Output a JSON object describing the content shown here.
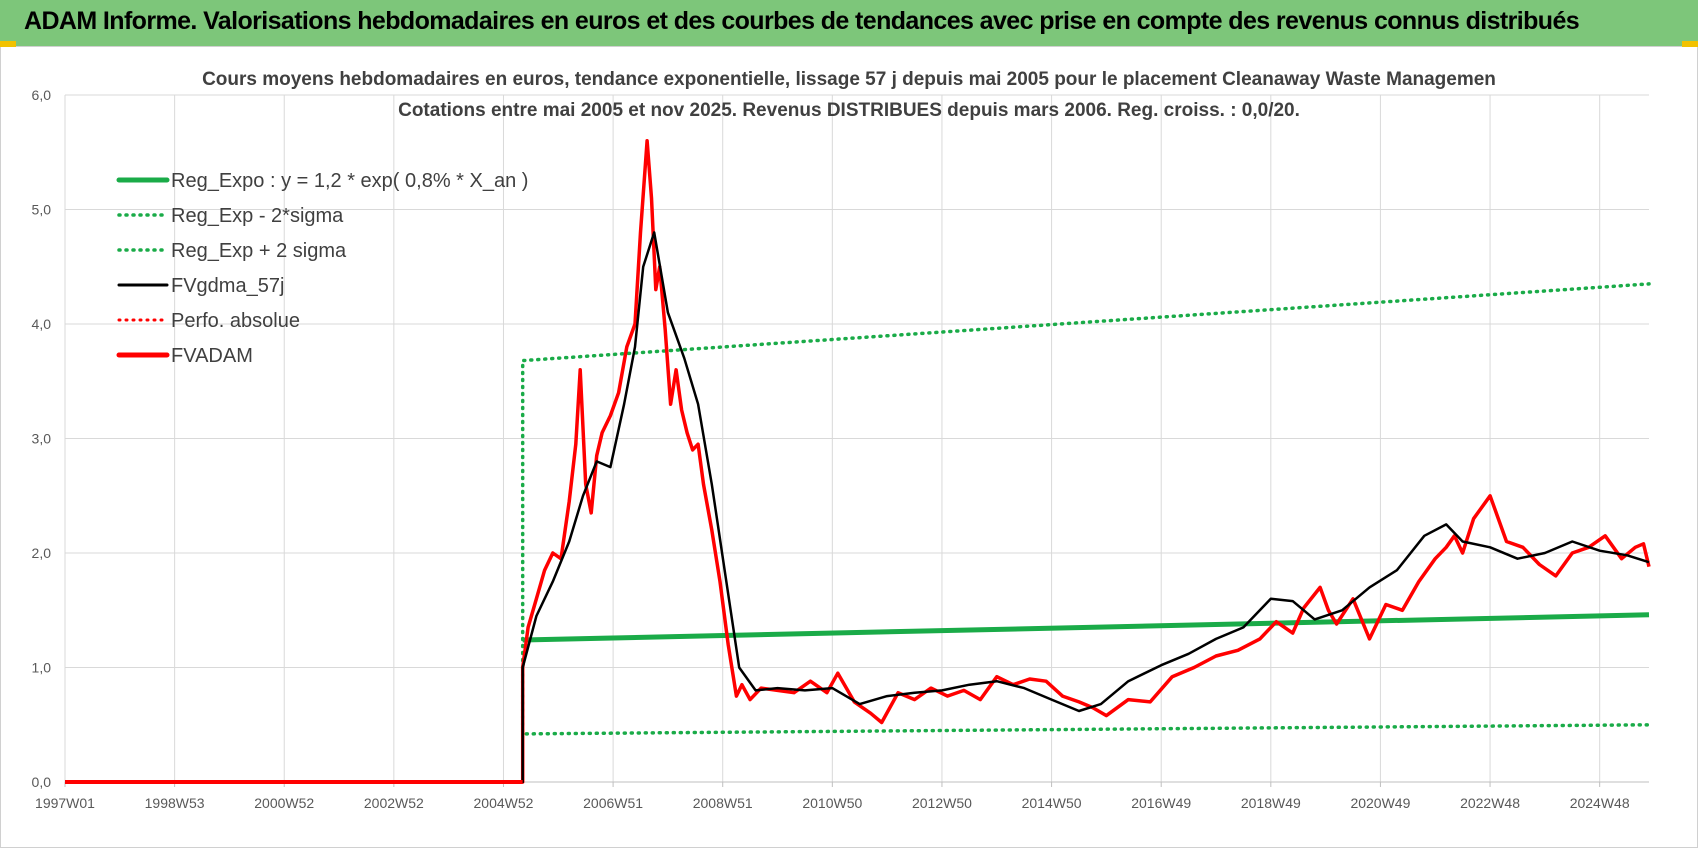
{
  "header": {
    "title": "ADAM Informe. Valorisations hebdomadaires en euros et des courbes de tendances avec prise en compte des revenus connus distribués"
  },
  "colors": {
    "header_bg": "#7dc67a",
    "reg_green": "#1aab48",
    "series_red": "#ff0000",
    "smooth_black": "#000000",
    "grid": "#d9d9d9",
    "title_text": "#404040"
  },
  "chart_data": {
    "type": "line",
    "title": "Cours moyens hebdomadaires en euros, tendance exponentielle, lissage 57 j depuis mai 2005 pour le placement Cleanaway Waste Managemen",
    "subtitle": "Cotations entre mai 2005 et nov 2025. Revenus DISTRIBUES depuis mars 2006. Reg. croiss. : 0,0/20.",
    "xlabel": "",
    "ylabel": "",
    "ylim": [
      0,
      6
    ],
    "xlim": [
      1997.0,
      2025.9
    ],
    "grid": true,
    "legend_position": "top-left",
    "y_ticks": [
      "0,0",
      "1,0",
      "2,0",
      "3,0",
      "4,0",
      "5,0",
      "6,0"
    ],
    "x_ticks": [
      {
        "label": "1997W01",
        "x": 1997.0
      },
      {
        "label": "1998W53",
        "x": 1999.0
      },
      {
        "label": "2000W52",
        "x": 2001.0
      },
      {
        "label": "2002W52",
        "x": 2003.0
      },
      {
        "label": "2004W52",
        "x": 2005.0
      },
      {
        "label": "2006W51",
        "x": 2007.0
      },
      {
        "label": "2008W51",
        "x": 2009.0
      },
      {
        "label": "2010W50",
        "x": 2011.0
      },
      {
        "label": "2012W50",
        "x": 2013.0
      },
      {
        "label": "2014W50",
        "x": 2015.0
      },
      {
        "label": "2016W49",
        "x": 2017.0
      },
      {
        "label": "2018W49",
        "x": 2019.0
      },
      {
        "label": "2020W49",
        "x": 2021.0
      },
      {
        "label": "2022W48",
        "x": 2023.0
      },
      {
        "label": "2024W48",
        "x": 2025.0
      }
    ],
    "legend": [
      {
        "label": "Reg_Expo : y = 1,2 * exp( 0,8% *  X_an )",
        "color": "#1aab48",
        "style": "solid"
      },
      {
        "label": "Reg_Exp - 2*sigma",
        "color": "#1aab48",
        "style": "dotted"
      },
      {
        "label": "Reg_Exp + 2 sigma",
        "color": "#1aab48",
        "style": "dotted"
      },
      {
        "label": "FVgdma_57j",
        "color": "#000000",
        "style": "solid"
      },
      {
        "label": "Perfo. absolue",
        "color": "#ff0000",
        "style": "dotted"
      },
      {
        "label": "FVADAM",
        "color": "#ff0000",
        "style": "solid"
      }
    ],
    "series": [
      {
        "name": "Reg_Expo : y = 1,2 * exp( 0,8% *  X_an )",
        "x": [
          2005.35,
          2025.9
        ],
        "values": [
          1.24,
          1.46
        ]
      },
      {
        "name": "Reg_Exp - 2*sigma",
        "x": [
          2005.35,
          2025.9
        ],
        "values": [
          0.42,
          0.5
        ]
      },
      {
        "name": "Reg_Exp + 2 sigma",
        "x": [
          2005.35,
          2025.9
        ],
        "values": [
          3.68,
          4.35
        ]
      },
      {
        "name": "FVgdma_57j",
        "x": [
          2005.35,
          2005.6,
          2005.9,
          2006.2,
          2006.45,
          2006.7,
          2006.95,
          2007.2,
          2007.4,
          2007.55,
          2007.75,
          2008.0,
          2008.3,
          2008.55,
          2008.8,
          2009.05,
          2009.3,
          2009.6,
          2010.0,
          2010.5,
          2011.0,
          2011.5,
          2012.0,
          2012.5,
          2013.0,
          2013.5,
          2014.0,
          2014.5,
          2015.0,
          2015.5,
          2015.9,
          2016.4,
          2017.0,
          2017.5,
          2018.0,
          2018.5,
          2019.0,
          2019.4,
          2019.8,
          2020.3,
          2020.8,
          2021.3,
          2021.8,
          2022.2,
          2022.5,
          2023.0,
          2023.5,
          2024.0,
          2024.5,
          2025.0,
          2025.5,
          2025.9
        ],
        "values": [
          1.0,
          1.45,
          1.75,
          2.1,
          2.5,
          2.8,
          2.75,
          3.3,
          3.8,
          4.5,
          4.8,
          4.1,
          3.7,
          3.3,
          2.6,
          1.8,
          1.0,
          0.8,
          0.82,
          0.8,
          0.82,
          0.68,
          0.75,
          0.78,
          0.8,
          0.85,
          0.88,
          0.82,
          0.72,
          0.62,
          0.68,
          0.88,
          1.02,
          1.12,
          1.25,
          1.35,
          1.6,
          1.58,
          1.42,
          1.5,
          1.7,
          1.85,
          2.15,
          2.25,
          2.1,
          2.05,
          1.95,
          2.0,
          2.1,
          2.02,
          1.98,
          1.92
        ]
      },
      {
        "name": "FVADAM",
        "x": [
          2005.35,
          2005.45,
          2005.6,
          2005.75,
          2005.9,
          2006.05,
          2006.2,
          2006.32,
          2006.4,
          2006.5,
          2006.6,
          2006.7,
          2006.8,
          2006.95,
          2007.1,
          2007.25,
          2007.4,
          2007.5,
          2007.62,
          2007.7,
          2007.78,
          2007.85,
          2007.95,
          2008.05,
          2008.15,
          2008.25,
          2008.35,
          2008.45,
          2008.55,
          2008.65,
          2008.8,
          2008.95,
          2009.1,
          2009.25,
          2009.35,
          2009.5,
          2009.7,
          2010.0,
          2010.3,
          2010.6,
          2010.9,
          2011.1,
          2011.4,
          2011.7,
          2011.9,
          2012.2,
          2012.5,
          2012.8,
          2013.1,
          2013.4,
          2013.7,
          2014.0,
          2014.3,
          2014.6,
          2014.9,
          2015.2,
          2015.5,
          2015.75,
          2016.0,
          2016.4,
          2016.8,
          2017.2,
          2017.6,
          2018.0,
          2018.4,
          2018.8,
          2019.1,
          2019.4,
          2019.6,
          2019.9,
          2020.05,
          2020.2,
          2020.5,
          2020.8,
          2021.1,
          2021.4,
          2021.7,
          2022.0,
          2022.2,
          2022.35,
          2022.5,
          2022.7,
          2023.0,
          2023.3,
          2023.6,
          2023.9,
          2024.2,
          2024.5,
          2024.8,
          2025.1,
          2025.4,
          2025.65,
          2025.8,
          2025.9
        ],
        "values": [
          1.0,
          1.35,
          1.6,
          1.85,
          2.0,
          1.95,
          2.45,
          2.95,
          3.6,
          2.6,
          2.35,
          2.85,
          3.05,
          3.2,
          3.4,
          3.8,
          4.0,
          4.8,
          5.6,
          5.1,
          4.3,
          4.5,
          3.95,
          3.3,
          3.6,
          3.25,
          3.05,
          2.9,
          2.95,
          2.6,
          2.2,
          1.75,
          1.2,
          0.75,
          0.85,
          0.72,
          0.82,
          0.8,
          0.78,
          0.88,
          0.78,
          0.95,
          0.7,
          0.6,
          0.52,
          0.78,
          0.72,
          0.82,
          0.75,
          0.8,
          0.72,
          0.92,
          0.85,
          0.9,
          0.88,
          0.75,
          0.7,
          0.65,
          0.58,
          0.72,
          0.7,
          0.92,
          1.0,
          1.1,
          1.15,
          1.25,
          1.4,
          1.3,
          1.52,
          1.7,
          1.5,
          1.38,
          1.6,
          1.25,
          1.55,
          1.5,
          1.75,
          1.95,
          2.05,
          2.15,
          2.0,
          2.3,
          2.5,
          2.1,
          2.05,
          1.9,
          1.8,
          2.0,
          2.05,
          2.15,
          1.95,
          2.05,
          2.08,
          1.88
        ]
      }
    ]
  }
}
